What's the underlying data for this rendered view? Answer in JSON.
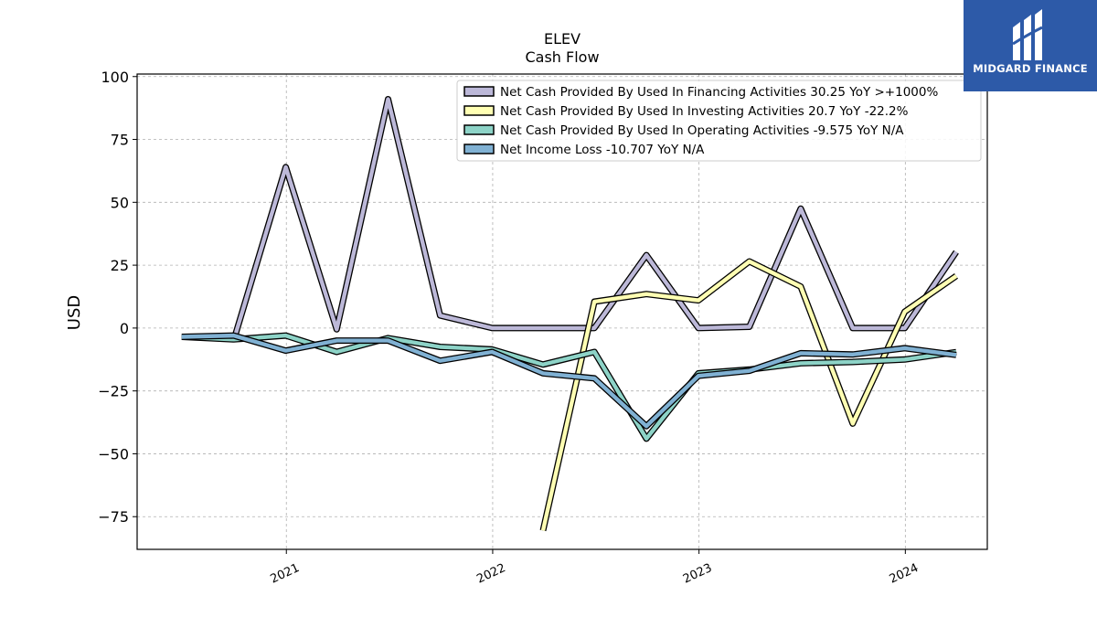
{
  "chart_data": {
    "type": "line",
    "title": "ELEV",
    "subtitle": "Cash Flow",
    "ylabel": "USD",
    "xlabel": "",
    "ylim": [
      -88,
      101
    ],
    "xlim": [
      "2020-04-12",
      "2024-05-25"
    ],
    "yticks": [
      100,
      75,
      50,
      25,
      0,
      -25,
      -50,
      -75
    ],
    "ytick_labels": [
      "100",
      "75",
      "50",
      "25",
      "0",
      "−25",
      "−50",
      "−75"
    ],
    "xticks": [
      "2021-01-01",
      "2022-01-01",
      "2023-01-01",
      "2024-01-01"
    ],
    "xtick_labels": [
      "2021",
      "2022",
      "2023",
      "2024"
    ],
    "grid": true,
    "legend_position": "top-right",
    "series": [
      {
        "name": "Net Cash Provided By Used In Financing Activities",
        "legend_label": "Net Cash Provided By Used In Financing Activities  30.25 YoY >+1000%",
        "color": "#bcb8d8",
        "points": [
          [
            "2020-09-30",
            -4.8
          ],
          [
            "2020-12-31",
            64
          ],
          [
            "2021-03-31",
            -0.5
          ],
          [
            "2021-06-30",
            91
          ],
          [
            "2021-09-30",
            5
          ],
          [
            "2021-12-31",
            0
          ],
          [
            "2022-03-31",
            0
          ],
          [
            "2022-06-30",
            0
          ],
          [
            "2022-09-30",
            29
          ],
          [
            "2022-12-31",
            0
          ],
          [
            "2023-03-31",
            0.5
          ],
          [
            "2023-06-30",
            47.5
          ],
          [
            "2023-09-30",
            0
          ],
          [
            "2023-12-31",
            0
          ],
          [
            "2024-03-31",
            30.25
          ]
        ]
      },
      {
        "name": "Net Cash Provided By Used In Investing Activities",
        "legend_label": "Net Cash Provided By Used In Investing Activities  20.7 YoY -22.2%",
        "color": "#ffffb3",
        "points": [
          [
            "2022-03-31",
            -80.5
          ],
          [
            "2022-06-30",
            10.5
          ],
          [
            "2022-09-30",
            13.5
          ],
          [
            "2022-12-31",
            11
          ],
          [
            "2023-03-31",
            26.5
          ],
          [
            "2023-06-30",
            16.5
          ],
          [
            "2023-09-30",
            -38
          ],
          [
            "2023-12-31",
            6.5
          ],
          [
            "2024-03-31",
            20.7
          ]
        ]
      },
      {
        "name": "Net Cash Provided By Used In Operating Activities",
        "legend_label": "Net Cash Provided By Used In Operating Activities  -9.575 YoY N/A",
        "color": "#8dd3c7",
        "points": [
          [
            "2020-06-30",
            -3.5
          ],
          [
            "2020-09-30",
            -4.5
          ],
          [
            "2020-12-31",
            -3
          ],
          [
            "2021-03-31",
            -9.5
          ],
          [
            "2021-06-30",
            -4
          ],
          [
            "2021-09-30",
            -7.5
          ],
          [
            "2021-12-31",
            -8.5
          ],
          [
            "2022-03-31",
            -14.5
          ],
          [
            "2022-06-30",
            -9.5
          ],
          [
            "2022-09-30",
            -44
          ],
          [
            "2022-12-31",
            -18
          ],
          [
            "2023-03-31",
            -16.5
          ],
          [
            "2023-06-30",
            -14
          ],
          [
            "2023-09-30",
            -13.5
          ],
          [
            "2023-12-31",
            -12.5
          ],
          [
            "2024-03-31",
            -9.575
          ]
        ]
      },
      {
        "name": "Net Income Loss",
        "legend_label": "Net Income Loss  -10.707 YoY N/A",
        "color": "#80b1d3",
        "points": [
          [
            "2020-06-30",
            -3.5
          ],
          [
            "2020-09-30",
            -3
          ],
          [
            "2020-12-31",
            -9
          ],
          [
            "2021-03-31",
            -5
          ],
          [
            "2021-06-30",
            -5
          ],
          [
            "2021-09-30",
            -13
          ],
          [
            "2021-12-31",
            -9.5
          ],
          [
            "2022-03-31",
            -18
          ],
          [
            "2022-06-30",
            -20
          ],
          [
            "2022-09-30",
            -39
          ],
          [
            "2022-12-31",
            -19
          ],
          [
            "2023-03-31",
            -17
          ],
          [
            "2023-06-30",
            -10
          ],
          [
            "2023-09-30",
            -10.5
          ],
          [
            "2023-12-31",
            -8
          ],
          [
            "2024-03-31",
            -10.707
          ]
        ]
      }
    ]
  },
  "logo": {
    "text": "MIDGARD FINANCE"
  }
}
